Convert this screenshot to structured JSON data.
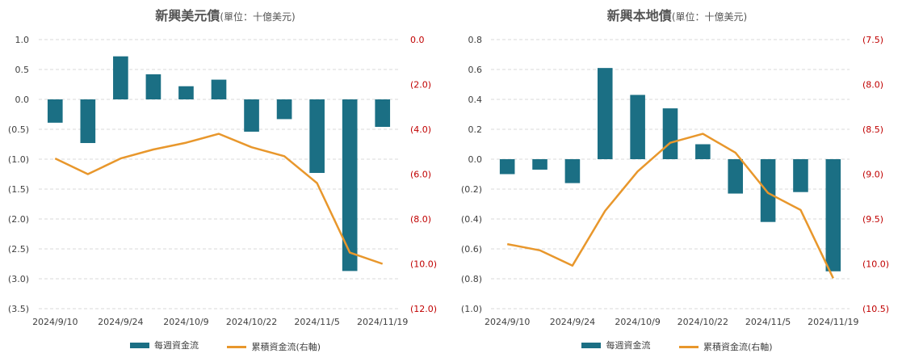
{
  "colors": {
    "bar": "#1b6f84",
    "line": "#e8972c",
    "grid": "#d9d9d9",
    "right_axis": "#c00000"
  },
  "chart_data": [
    {
      "type": "bar",
      "title": "新興美元債",
      "title_unit": "(單位：十億美元)",
      "x_tick_labels": [
        "2024/9/10",
        "2024/9/24",
        "2024/10/9",
        "2024/10/22",
        "2024/11/5",
        "2024/11/19"
      ],
      "left_axis": {
        "min": -3.5,
        "max": 1.0,
        "ticks": [
          "1.0",
          "0.5",
          "0.0",
          "(0.5)",
          "(1.0)",
          "(1.5)",
          "(2.0)",
          "(2.5)",
          "(3.0)",
          "(3.5)"
        ]
      },
      "right_axis": {
        "min": -12.0,
        "max": 0.0,
        "inverted": true,
        "ticks": [
          "0.0",
          "(2.0)",
          "(4.0)",
          "(6.0)",
          "(8.0)",
          "(10.0)",
          "(12.0)"
        ]
      },
      "series": [
        {
          "name": "每週資金流",
          "type": "bar",
          "axis": "left",
          "values": [
            -0.39,
            -0.73,
            0.72,
            0.42,
            0.22,
            0.33,
            -0.54,
            -0.33,
            -1.23,
            -2.87,
            -0.46
          ]
        },
        {
          "name": "累積資金流(右軸)",
          "type": "line",
          "axis": "right",
          "values": [
            -5.3,
            -6.0,
            -5.3,
            -4.9,
            -4.6,
            -4.2,
            -4.8,
            -5.2,
            -6.4,
            -9.5,
            -10.0
          ]
        }
      ]
    },
    {
      "type": "bar",
      "title": "新興本地債",
      "title_unit": "(單位：十億美元)",
      "x_tick_labels": [
        "2024/9/10",
        "2024/9/24",
        "2024/10/9",
        "2024/10/22",
        "2024/11/5",
        "2024/11/19"
      ],
      "left_axis": {
        "min": -1.0,
        "max": 0.8,
        "ticks": [
          "0.8",
          "0.6",
          "0.4",
          "0.2",
          "0.0",
          "(0.2)",
          "(0.4)",
          "(0.6)",
          "(0.8)",
          "(1.0)"
        ]
      },
      "right_axis": {
        "min": -10.5,
        "max": -7.5,
        "inverted": true,
        "ticks": [
          "(7.5)",
          "(8.0)",
          "(8.5)",
          "(9.0)",
          "(9.5)",
          "(10.0)",
          "(10.5)"
        ]
      },
      "series": [
        {
          "name": "每週資金流",
          "type": "bar",
          "axis": "left",
          "values": [
            -0.1,
            -0.07,
            -0.16,
            0.61,
            0.43,
            0.34,
            0.1,
            -0.23,
            -0.42,
            -0.22,
            -0.75
          ]
        },
        {
          "name": "累積資金流(右軸)",
          "type": "line",
          "axis": "right",
          "values": [
            -9.78,
            -9.85,
            -10.02,
            -9.41,
            -8.97,
            -8.65,
            -8.55,
            -8.76,
            -9.21,
            -9.4,
            -10.16
          ]
        }
      ]
    }
  ],
  "legend": {
    "bar_label": "每週資金流",
    "line_label": "累積資金流(右軸)"
  }
}
